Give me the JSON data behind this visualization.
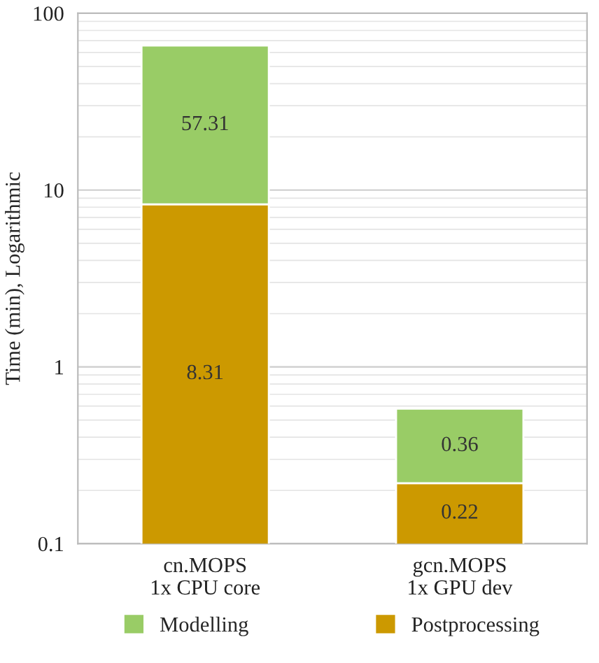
{
  "chart_data": {
    "type": "bar",
    "stacked": true,
    "log": true,
    "ylabel": "Time (min), Logarithmic",
    "categories": [
      "cn.MOPS\n1x CPU core",
      "gcn.MOPS\n1x GPU dev"
    ],
    "series": [
      {
        "name": "Postprocessing",
        "color": "#cc9900",
        "values": [
          8.31,
          0.22
        ]
      },
      {
        "name": "Modelling",
        "color": "#99cc66",
        "values": [
          57.31,
          0.36
        ]
      }
    ],
    "ylim": [
      0.1,
      100
    ],
    "yticks": [
      0.1,
      1,
      10,
      100
    ],
    "grid": true,
    "legend": "bottom",
    "data_labels": true
  }
}
